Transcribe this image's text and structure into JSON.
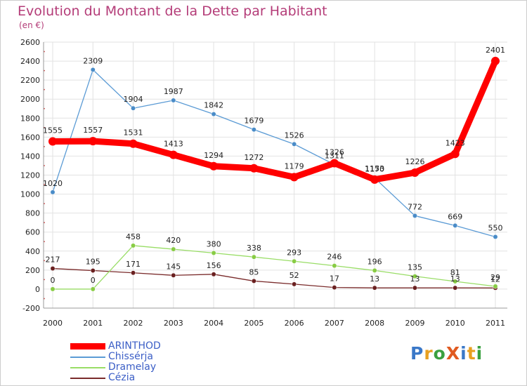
{
  "title": "Evolution du Montant de la Dette par Habitant",
  "subtitle": "(en €)",
  "logo": {
    "text": "ProXiti",
    "letter_colors": [
      "#3a78c8",
      "#e8a020",
      "#3aa040",
      "#e05a20",
      "#3a78c8",
      "#e8a020",
      "#3aa040"
    ]
  },
  "chart_data": {
    "type": "line",
    "x": [
      "2000",
      "2001",
      "2002",
      "2003",
      "2004",
      "2005",
      "2006",
      "2007",
      "2008",
      "2009",
      "2010",
      "2011"
    ],
    "ylim": [
      -200,
      2600
    ],
    "yticks": [
      "-200",
      "0",
      "200",
      "400",
      "600",
      "800",
      "1000",
      "1200",
      "1400",
      "1600",
      "1800",
      "2000",
      "2200",
      "2400",
      "2600"
    ],
    "grid": true,
    "legend_position": "bottom-left",
    "series": [
      {
        "name": "ARINTHOD",
        "color": "#ff0000",
        "values": [
          1555,
          1557,
          1531,
          1413,
          1294,
          1272,
          1179,
          1326,
          1153,
          1226,
          1423,
          2401
        ],
        "labels": [
          "1555",
          "1557",
          "1531",
          "1413",
          "1294",
          "1272",
          "1179",
          "1326",
          "1153",
          "1226",
          "1423",
          "2401"
        ]
      },
      {
        "name": "Chissérja",
        "color": "#5b9bd5",
        "values": [
          1020,
          2309,
          1904,
          1987,
          1842,
          1679,
          1526,
          1311,
          1170,
          772,
          669,
          550
        ],
        "labels": [
          "1020",
          "2309",
          "1904",
          "1987",
          "1842",
          "1679",
          "1526",
          "1311",
          "1170",
          "772",
          "669",
          "550"
        ]
      },
      {
        "name": "Dramelay",
        "color": "#99dd66",
        "values": [
          0,
          0,
          458,
          420,
          380,
          338,
          293,
          246,
          196,
          135,
          81,
          29
        ],
        "labels": [
          "0",
          "0",
          "458",
          "420",
          "380",
          "338",
          "293",
          "246",
          "196",
          "135",
          "81",
          "29"
        ]
      },
      {
        "name": "Cézia",
        "color": "#7a2b2b",
        "values": [
          217,
          195,
          171,
          145,
          156,
          85,
          52,
          17,
          13,
          13,
          13,
          12
        ],
        "labels": [
          "217",
          "195",
          "171",
          "145",
          "156",
          "85",
          "52",
          "17",
          "13",
          "13",
          "13",
          "12"
        ]
      }
    ]
  }
}
